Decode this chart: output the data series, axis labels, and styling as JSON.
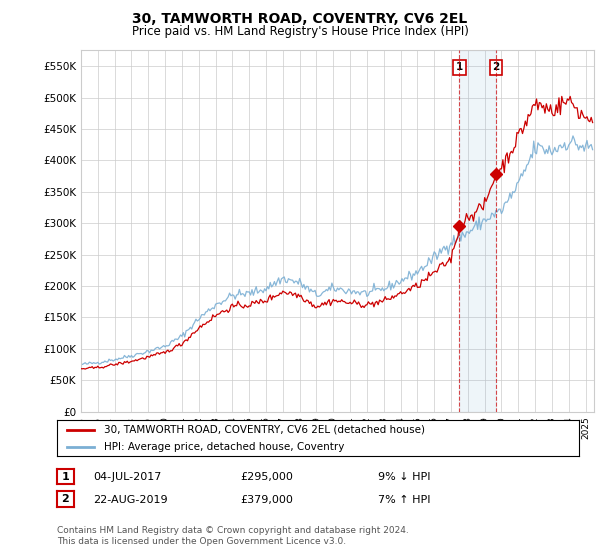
{
  "title": "30, TAMWORTH ROAD, COVENTRY, CV6 2EL",
  "subtitle": "Price paid vs. HM Land Registry's House Price Index (HPI)",
  "ylabel_ticks": [
    "£0",
    "£50K",
    "£100K",
    "£150K",
    "£200K",
    "£250K",
    "£300K",
    "£350K",
    "£400K",
    "£450K",
    "£500K",
    "£550K"
  ],
  "ylim": [
    0,
    575000
  ],
  "yticks": [
    0,
    50000,
    100000,
    150000,
    200000,
    250000,
    300000,
    350000,
    400000,
    450000,
    500000,
    550000
  ],
  "xlim_start": 1995.0,
  "xlim_end": 2025.5,
  "background_color": "#ffffff",
  "grid_color": "#cccccc",
  "hpi_color": "#7bafd4",
  "price_color": "#cc0000",
  "sale1_price": 295000,
  "sale1_year": 2017.5,
  "sale1_date": "04-JUL-2017",
  "sale1_pct": "9% ↓ HPI",
  "sale2_price": 379000,
  "sale2_year": 2019.67,
  "sale2_date": "22-AUG-2019",
  "sale2_pct": "7% ↑ HPI",
  "legend_line1": "30, TAMWORTH ROAD, COVENTRY, CV6 2EL (detached house)",
  "legend_line2": "HPI: Average price, detached house, Coventry",
  "footnote": "Contains HM Land Registry data © Crown copyright and database right 2024.\nThis data is licensed under the Open Government Licence v3.0."
}
